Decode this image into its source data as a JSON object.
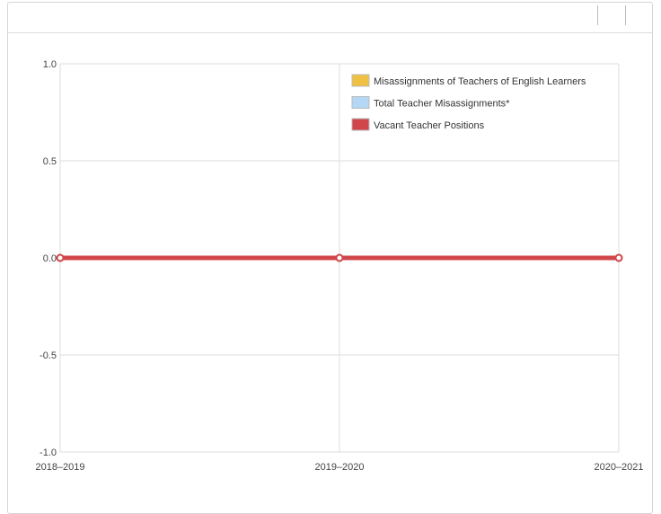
{
  "chart_data": {
    "type": "line",
    "categories": [
      "2018–2019",
      "2019–2020",
      "2020–2021"
    ],
    "ylim": [
      -1.0,
      1.0
    ],
    "yticks": [
      "1.0",
      "0.5",
      "0.0",
      "-0.5",
      "-1.0"
    ],
    "ytick_values": [
      1.0,
      0.5,
      0.0,
      -0.5,
      -1.0
    ],
    "grid": true,
    "legend_position": "top-right",
    "series": [
      {
        "name": "Misassignments of Teachers of English Learners",
        "values": [
          0,
          0,
          0
        ],
        "color": "#f0c043"
      },
      {
        "name": "Total Teacher Misassignments*",
        "values": [
          0,
          0,
          0
        ],
        "color": "#b3d7f5"
      },
      {
        "name": "Vacant Teacher Positions",
        "values": [
          0,
          0,
          0
        ],
        "color": "#d0464a"
      }
    ]
  }
}
